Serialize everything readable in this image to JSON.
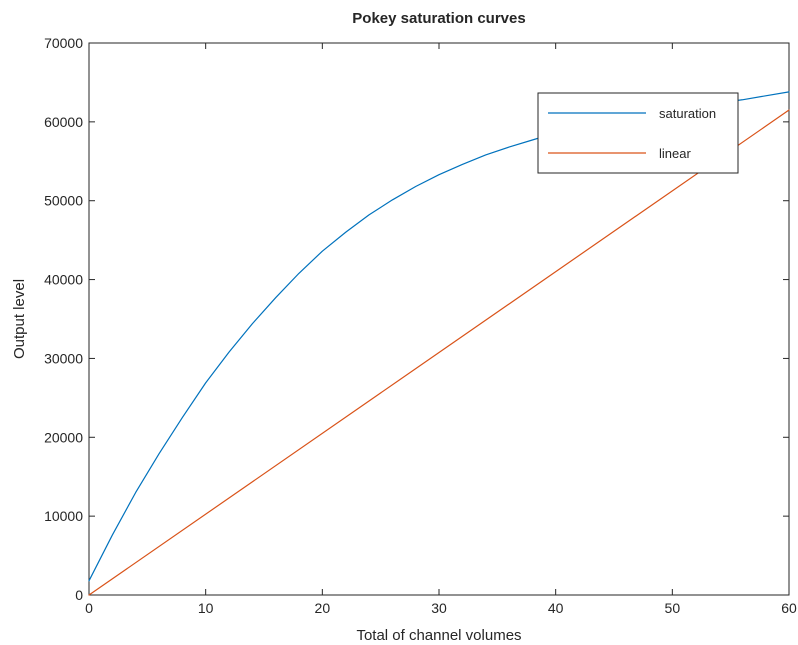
{
  "chart_data": {
    "type": "line",
    "title": "Pokey saturation curves",
    "xlabel": "Total of channel volumes",
    "ylabel": "Output level",
    "xlim": [
      0,
      60
    ],
    "ylim": [
      0,
      70000
    ],
    "x_ticks": [
      0,
      10,
      20,
      30,
      40,
      50,
      60
    ],
    "y_ticks": [
      0,
      10000,
      20000,
      30000,
      40000,
      50000,
      60000,
      70000
    ],
    "x_tick_labels": [
      "0",
      "10",
      "20",
      "30",
      "40",
      "50",
      "60"
    ],
    "y_tick_labels": [
      "0",
      "10000",
      "20000",
      "30000",
      "40000",
      "50000",
      "60000",
      "70000"
    ],
    "grid": false,
    "legend_position": "top-right",
    "series": [
      {
        "name": "saturation",
        "color": "#0072bd",
        "x": [
          0,
          2,
          4,
          6,
          8,
          10,
          12,
          14,
          16,
          18,
          20,
          22,
          24,
          26,
          28,
          30,
          32,
          34,
          36,
          38,
          40,
          42,
          44,
          46,
          48,
          50,
          52,
          54,
          56,
          58,
          60
        ],
        "y": [
          1800,
          7600,
          13000,
          17900,
          22500,
          26900,
          30800,
          34400,
          37700,
          40800,
          43600,
          46000,
          48200,
          50100,
          51800,
          53300,
          54600,
          55800,
          56800,
          57700,
          58600,
          59300,
          59900,
          60500,
          61000,
          61500,
          62000,
          62400,
          62800,
          63300,
          63800
        ]
      },
      {
        "name": "linear",
        "color": "#d95319",
        "x": [
          0,
          60
        ],
        "y": [
          0,
          61500
        ]
      }
    ]
  }
}
